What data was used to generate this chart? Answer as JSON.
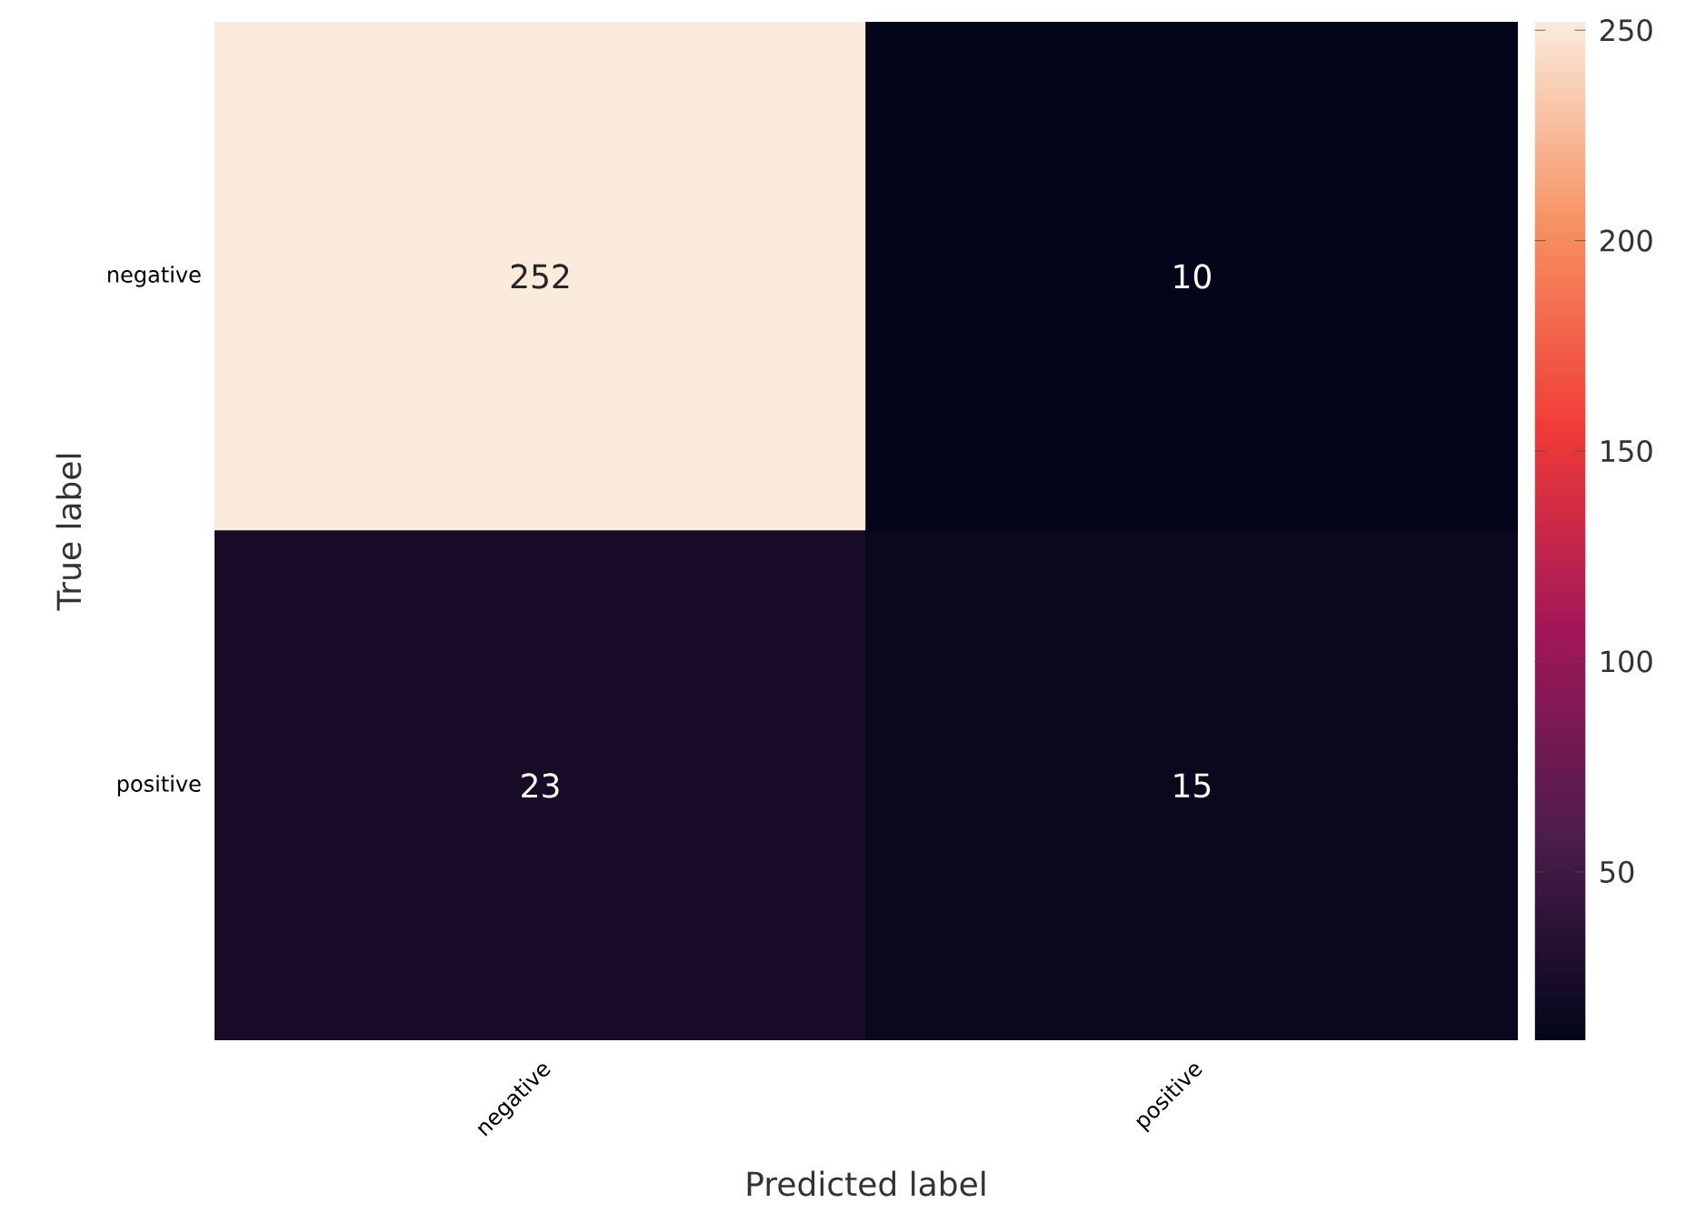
{
  "chart_data": {
    "type": "heatmap",
    "xlabel": "Predicted label",
    "ylabel": "True label",
    "categories": [
      "negative",
      "positive"
    ],
    "y_categories": [
      "negative",
      "positive"
    ],
    "cells": [
      [
        252,
        10
      ],
      [
        23,
        15
      ]
    ],
    "clim": [
      10,
      252
    ],
    "cticks": [
      50,
      100,
      150,
      200,
      250
    ],
    "data_labels": true
  }
}
